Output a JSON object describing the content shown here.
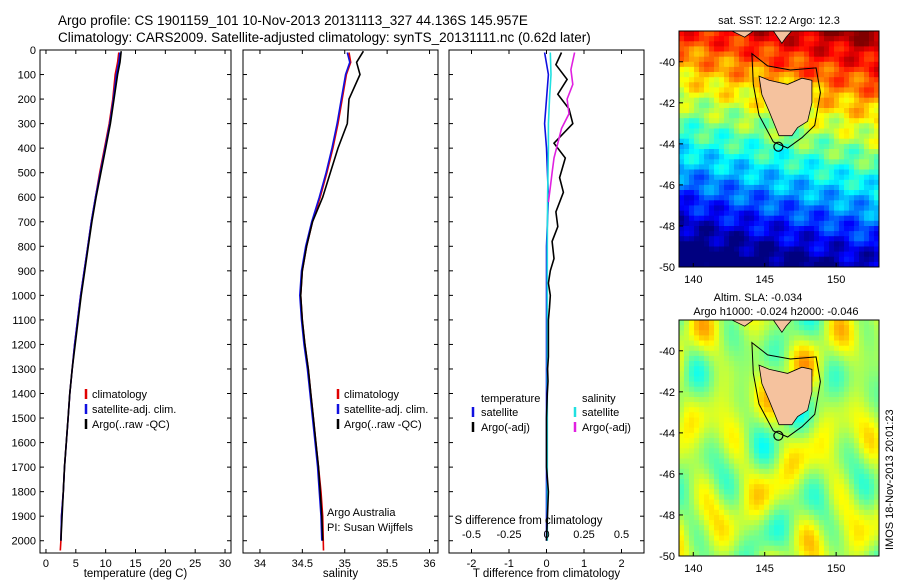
{
  "header": {
    "title_line1": "Argo profile: CS 1901159_101 10-Nov-2013 20131113_327 44.136S 145.957E",
    "title_line2": "Climatology: CARS2009. Satellite-adjusted climatology: synTS_20131111.nc (0.62d later)"
  },
  "credit": "IMOS 18-Nov-2013 20:01:23",
  "chart_data": [
    {
      "id": "temperature",
      "type": "line",
      "xlabel": "temperature (deg C)",
      "ylabel": "",
      "xlim": [
        -1,
        31
      ],
      "ylim": [
        2050,
        0
      ],
      "xticks": [
        0,
        5,
        10,
        15,
        20,
        25,
        30
      ],
      "yticks": [
        0,
        100,
        200,
        300,
        400,
        500,
        600,
        700,
        800,
        900,
        1000,
        1100,
        1200,
        1300,
        1400,
        1500,
        1600,
        1700,
        1800,
        1900,
        2000
      ],
      "legend": [
        "climatology",
        "satellite-adj. clim.",
        "Argo(..raw -QC)"
      ],
      "legend_colors": [
        "#e00000",
        "#1010e0",
        "#000000"
      ],
      "series": [
        {
          "name": "climatology",
          "color": "#e00000",
          "x": [
            12.2,
            12.0,
            11.6,
            11.2,
            10.6,
            9.8,
            9.0,
            8.3,
            7.6,
            7.0,
            6.4,
            5.8,
            5.3,
            4.8,
            4.4,
            4.0,
            3.7,
            3.4,
            3.1,
            2.9,
            2.6,
            2.5,
            2.4
          ],
          "y": [
            10,
            50,
            100,
            200,
            300,
            400,
            500,
            600,
            700,
            800,
            900,
            1000,
            1100,
            1200,
            1300,
            1400,
            1500,
            1600,
            1700,
            1800,
            1900,
            2000,
            2040
          ]
        },
        {
          "name": "satellite-adj. clim.",
          "color": "#1010e0",
          "x": [
            12.4,
            12.2,
            11.8,
            11.3,
            10.7,
            9.9,
            9.1,
            8.3,
            7.6,
            7.0,
            6.4,
            5.8,
            5.3,
            4.8,
            4.4,
            4.0,
            3.7,
            3.4,
            3.1,
            2.9,
            2.6,
            2.5
          ],
          "y": [
            10,
            50,
            100,
            200,
            300,
            400,
            500,
            600,
            700,
            800,
            900,
            1000,
            1100,
            1200,
            1300,
            1400,
            1500,
            1600,
            1700,
            1800,
            1900,
            2000
          ]
        },
        {
          "name": "Argo(..raw -QC)",
          "color": "#000000",
          "x": [
            12.6,
            12.4,
            12.0,
            11.4,
            10.8,
            10.0,
            9.2,
            8.4,
            7.7,
            7.1,
            6.5,
            5.9,
            5.4,
            4.9,
            4.4,
            4.0,
            3.7,
            3.4,
            3.1,
            2.9,
            2.7,
            2.5
          ],
          "y": [
            5,
            50,
            100,
            200,
            300,
            400,
            500,
            600,
            700,
            800,
            900,
            1000,
            1100,
            1200,
            1300,
            1400,
            1500,
            1600,
            1700,
            1800,
            1900,
            2000
          ]
        }
      ]
    },
    {
      "id": "salinity",
      "type": "line",
      "xlabel": "salinity",
      "xlim": [
        33.8,
        36.1
      ],
      "ylim": [
        2050,
        0
      ],
      "xticks": [
        34,
        34.5,
        35,
        35.5,
        36
      ],
      "legend": [
        "climatology",
        "satellite-adj. clim.",
        "Argo(..raw -QC)"
      ],
      "legend_colors": [
        "#e00000",
        "#1010e0",
        "#000000"
      ],
      "annotation": [
        "Argo Australia",
        "PI: Susan Wijffels"
      ],
      "series": [
        {
          "name": "climatology",
          "color": "#e00000",
          "x": [
            35.05,
            35.07,
            35.02,
            34.97,
            34.92,
            34.86,
            34.79,
            34.71,
            34.62,
            34.55,
            34.5,
            34.48,
            34.5,
            34.53,
            34.57,
            34.6,
            34.63,
            34.66,
            34.69,
            34.72,
            34.74,
            34.75
          ],
          "y": [
            10,
            50,
            100,
            200,
            300,
            400,
            500,
            600,
            700,
            800,
            900,
            1000,
            1100,
            1200,
            1300,
            1400,
            1500,
            1600,
            1700,
            1800,
            1900,
            2040
          ]
        },
        {
          "name": "satellite-adj. clim.",
          "color": "#1010e0",
          "x": [
            35.03,
            35.06,
            35.01,
            34.96,
            34.91,
            34.85,
            34.78,
            34.7,
            34.61,
            34.54,
            34.49,
            34.47,
            34.49,
            34.52,
            34.56,
            34.59,
            34.62,
            34.65,
            34.68,
            34.7,
            34.72,
            34.73
          ],
          "y": [
            10,
            50,
            100,
            200,
            300,
            400,
            500,
            600,
            700,
            800,
            900,
            1000,
            1100,
            1200,
            1300,
            1400,
            1500,
            1600,
            1700,
            1800,
            1900,
            2000
          ]
        },
        {
          "name": "Argo(..raw -QC)",
          "color": "#000000",
          "x": [
            35.22,
            35.14,
            35.18,
            35.05,
            35.03,
            34.92,
            34.83,
            34.74,
            34.62,
            34.55,
            34.5,
            34.48,
            34.5,
            34.53,
            34.57,
            34.6,
            34.63,
            34.66,
            34.69,
            34.71,
            34.73,
            34.74
          ],
          "y": [
            5,
            50,
            100,
            200,
            300,
            400,
            500,
            600,
            700,
            800,
            900,
            1000,
            1100,
            1200,
            1300,
            1400,
            1500,
            1600,
            1700,
            1800,
            1900,
            2000
          ]
        }
      ]
    },
    {
      "id": "difference",
      "type": "line",
      "xlabel": "T difference from climatology",
      "xlabel_top": "S difference from climatology",
      "xlim": [
        -2.6,
        2.6
      ],
      "ylim": [
        2050,
        0
      ],
      "xticks": [
        -2,
        -1,
        0,
        1,
        2
      ],
      "xtick_labels": [
        "-2",
        "-1",
        "0",
        "1",
        "2"
      ],
      "xticks_top": [
        -0.5,
        -0.25,
        0,
        0.25,
        0.5
      ],
      "xtick_labels_top": [
        "-0.5",
        "-0.25",
        "0",
        "0.25",
        "0.5"
      ],
      "legend_temp_title": "temperature",
      "legend_sal_title": "salinity",
      "legend_temp": [
        "satellite",
        "Argo(-adj)"
      ],
      "legend_sal": [
        "satellite",
        "Argo(-adj)"
      ],
      "legend_temp_colors": [
        "#1010e0",
        "#000000"
      ],
      "legend_sal_colors": [
        "#20e0e0",
        "#e020e0"
      ],
      "series": [
        {
          "name": "T satellite",
          "color": "#1010e0",
          "x": [
            -0.05,
            0.05,
            0.0,
            -0.05,
            0.0,
            0.05,
            0.0,
            0.0,
            0.0,
            0.0,
            0.0,
            0.0,
            0.0
          ],
          "y": [
            10,
            100,
            200,
            300,
            400,
            600,
            800,
            1000,
            1200,
            1400,
            1600,
            1800,
            2000
          ]
        },
        {
          "name": "S satellite",
          "color": "#20e0e0",
          "x": [
            0.1,
            0.12,
            0.08,
            0.05,
            0.05,
            0.03,
            0.02,
            0.02,
            0.02,
            0.02,
            0.02,
            0.02,
            0.02
          ],
          "y": [
            10,
            100,
            200,
            300,
            400,
            600,
            800,
            1000,
            1200,
            1400,
            1600,
            1800,
            2000
          ]
        },
        {
          "name": "T Argo(-adj)",
          "color": "#000000",
          "x": [
            0.4,
            0.25,
            0.55,
            0.3,
            0.6,
            0.7,
            0.2,
            0.5,
            0.35,
            0.45,
            0.25,
            0.3,
            0.15,
            0.2,
            0.1,
            0.05,
            0.1,
            0.08,
            0.05,
            0.05,
            0.05,
            0.03,
            0.04,
            0.02,
            0.0,
            0.0,
            0.0,
            0.05,
            0.0
          ],
          "y": [
            10,
            60,
            120,
            180,
            240,
            300,
            380,
            440,
            520,
            580,
            660,
            720,
            780,
            850,
            900,
            950,
            1000,
            1050,
            1100,
            1150,
            1250,
            1300,
            1350,
            1400,
            1500,
            1600,
            1700,
            1800,
            2000
          ]
        },
        {
          "name": "S Argo(-adj)",
          "color": "#e020e0",
          "x": [
            0.75,
            0.65,
            0.7,
            0.55,
            0.6,
            0.4,
            0.3,
            0.2,
            0.15,
            0.1,
            0.05
          ],
          "y": [
            10,
            80,
            140,
            200,
            260,
            320,
            380,
            440,
            500,
            560,
            620
          ]
        }
      ]
    },
    {
      "id": "sst_map",
      "type": "heatmap",
      "title": "sat. SST: 12.2 Argo: 12.3",
      "xlim": [
        139,
        153
      ],
      "ylim": [
        -50,
        -38.5
      ],
      "xticks": [
        140,
        145,
        150
      ],
      "yticks": [
        -40,
        -42,
        -44,
        -46,
        -48,
        -50
      ],
      "argo_position": [
        145.957,
        -44.136
      ]
    },
    {
      "id": "sla_map",
      "type": "heatmap",
      "title": "Altim. SLA: -0.034",
      "subtitle": "Argo h1000: -0.024 h2000: -0.046",
      "xlim": [
        139,
        153
      ],
      "ylim": [
        -50,
        -38.5
      ],
      "xticks": [
        140,
        145,
        150
      ],
      "yticks": [
        -40,
        -42,
        -44,
        -46,
        -48,
        -50
      ],
      "argo_position": [
        145.957,
        -44.136
      ]
    }
  ]
}
